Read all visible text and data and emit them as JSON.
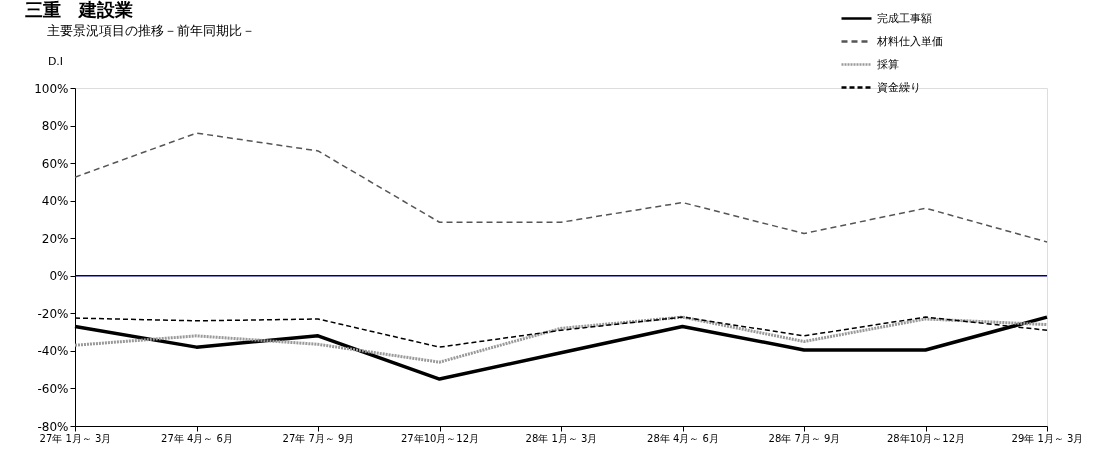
{
  "chart_data": {
    "type": "line",
    "title": "三重　建設業",
    "subtitle": "主要景況項目の推移－前年同期比－",
    "ylabel": "D.I",
    "categories": [
      "27年 1月～ 3月",
      "27年 4月～ 6月",
      "27年 7月～ 9月",
      "27年10月～12月",
      "28年 1月～ 3月",
      "28年 4月～ 6月",
      "28年 7月～ 9月",
      "28年10月～12月",
      "29年 1月～ 3月"
    ],
    "series": [
      {
        "name": "完成工事額",
        "color": "#000000",
        "line_style": "solid",
        "values": [
          -27,
          -38,
          -32,
          -55,
          -41,
          -27,
          -39.5,
          -39.5,
          -22
        ]
      },
      {
        "name": "材料仕入単価",
        "color": "#555555",
        "line_style": "dashed",
        "values": [
          52.5,
          76,
          66.5,
          28.5,
          28.5,
          39,
          22.5,
          36,
          18
        ]
      },
      {
        "name": "採算",
        "color": "#999999",
        "line_style": "dotted",
        "values": [
          -37,
          -32,
          -36.5,
          -46,
          -28,
          -22,
          -35,
          -23,
          -26
        ]
      },
      {
        "name": "資金繰り",
        "color": "#000000",
        "line_style": "dashed",
        "values": [
          -22.5,
          -24,
          -23,
          -38,
          -29,
          -22,
          -32,
          -22,
          -29
        ]
      }
    ],
    "ylim": [
      -80,
      100
    ],
    "yticks": [
      {
        "value": -80,
        "label": "-80%"
      },
      {
        "value": -60,
        "label": "-60%"
      },
      {
        "value": -40,
        "label": "-40%"
      },
      {
        "value": -20,
        "label": "-20%"
      },
      {
        "value": 0,
        "label": "0%"
      },
      {
        "value": 20,
        "label": "20%"
      },
      {
        "value": 40,
        "label": "40%"
      },
      {
        "value": 60,
        "label": "60%"
      },
      {
        "value": 80,
        "label": "80%"
      },
      {
        "value": 100,
        "label": "100%"
      }
    ],
    "ref_lines": [
      {
        "axis": "y",
        "value": 0,
        "color": "#000080"
      }
    ],
    "grid": false,
    "legend": "top right",
    "marker": "none"
  }
}
